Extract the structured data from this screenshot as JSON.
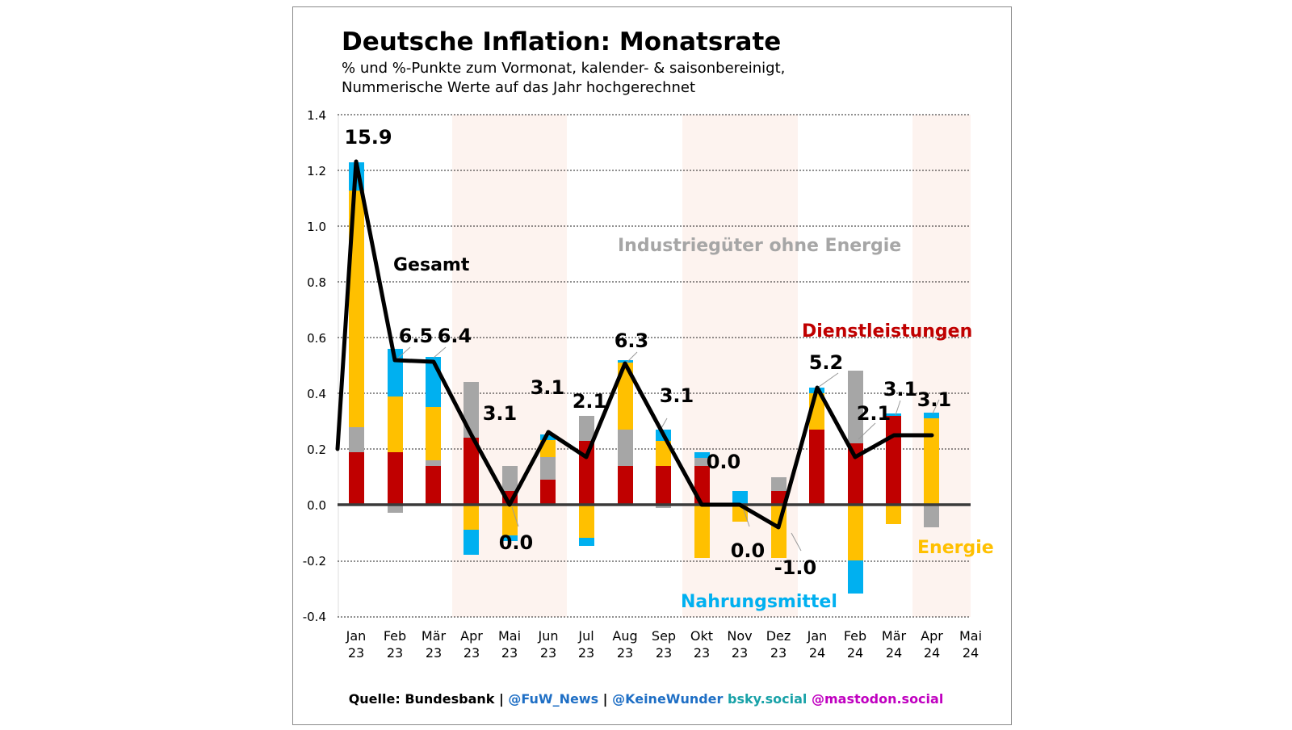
{
  "chart_data": {
    "type": "bar",
    "title": "Deutsche Inflation: Monatsrate",
    "subtitle_line1": "% und %-Punkte zum Vormonat, kalender- & saisonbereinigt,",
    "subtitle_line2": "Nummerische Werte auf das Jahr hochgerechnet",
    "ylim": [
      -0.4,
      1.4
    ],
    "yticks": [
      "1.4",
      "1.2",
      "1.0",
      "0.8",
      "0.6",
      "0.4",
      "0.2",
      "0.0",
      "-0.2",
      "-0.4"
    ],
    "categories": [
      {
        "month": "Jan",
        "year": "23"
      },
      {
        "month": "Feb",
        "year": "23"
      },
      {
        "month": "Mär",
        "year": "23"
      },
      {
        "month": "Apr",
        "year": "23"
      },
      {
        "month": "Mai",
        "year": "23"
      },
      {
        "month": "Jun",
        "year": "23"
      },
      {
        "month": "Jul",
        "year": "23"
      },
      {
        "month": "Aug",
        "year": "23"
      },
      {
        "month": "Sep",
        "year": "23"
      },
      {
        "month": "Okt",
        "year": "23"
      },
      {
        "month": "Nov",
        "year": "23"
      },
      {
        "month": "Dez",
        "year": "23"
      },
      {
        "month": "Jan",
        "year": "24"
      },
      {
        "month": "Feb",
        "year": "24"
      },
      {
        "month": "Mär",
        "year": "24"
      },
      {
        "month": "Apr",
        "year": "24"
      },
      {
        "month": "Mai",
        "year": "24"
      }
    ],
    "series": [
      {
        "name": "Dienstleistungen",
        "color": "#c00000",
        "values": [
          0.19,
          0.19,
          0.14,
          0.24,
          0.05,
          0.09,
          0.23,
          0.14,
          0.14,
          0.14,
          0.0,
          0.05,
          0.28,
          0.23,
          0.32,
          0.0,
          null
        ]
      },
      {
        "name": "Industriegüter ohne Energie",
        "color": "#a6a6a6",
        "values": [
          0.09,
          -0.03,
          0.02,
          0.2,
          0.09,
          0.08,
          0.09,
          0.13,
          -0.01,
          0.03,
          0.0,
          0.05,
          0.0,
          0.26,
          0.0,
          -0.08,
          null
        ]
      },
      {
        "name": "Energie",
        "color": "#ffc000",
        "values": [
          0.85,
          0.2,
          0.19,
          -0.09,
          -0.11,
          0.06,
          -0.12,
          0.24,
          0.09,
          -0.19,
          -0.06,
          -0.19,
          0.13,
          -0.2,
          -0.07,
          0.31,
          null
        ]
      },
      {
        "name": "Nahrungsmittel",
        "color": "#00b0f0",
        "values": [
          0.1,
          0.17,
          0.18,
          -0.09,
          -0.02,
          0.02,
          -0.03,
          0.01,
          0.04,
          0.02,
          0.05,
          0.0,
          0.02,
          -0.12,
          0.01,
          0.02,
          null
        ]
      }
    ],
    "total": {
      "name": "Gesamt",
      "values": [
        1.23,
        0.52,
        0.52,
        0.25,
        0.0,
        0.26,
        0.17,
        0.51,
        0.25,
        0.0,
        0.0,
        -0.08,
        0.42,
        0.17,
        0.25,
        0.25,
        null
      ]
    },
    "point_labels": [
      "15.9",
      "6.5",
      "6.4",
      "3.1",
      "0.0",
      "3.1",
      "2.1",
      "6.3",
      "3.1",
      "0.0",
      "0.0",
      "-1.0",
      "5.2",
      "2.1",
      "3.1",
      "3.1"
    ],
    "series_labels": {
      "gesamt": "Gesamt",
      "industrie": "Industriegüter ohne Energie",
      "dienst": "Dienstleistungen",
      "energie": "Energie",
      "nahrung": "Nahrungsmittel"
    },
    "shaded_quarters": [
      "Q2 23",
      "Q4 23",
      "Q2 24"
    ]
  },
  "footer": {
    "source": "Quelle: Bundesbank | ",
    "fuw": "@FuW_News",
    "sep": " | ",
    "kw": "@KeineWunder",
    "bsky": " bsky.social",
    "masto": " @mastodon.social",
    "colors": {
      "source": "#000000",
      "fuw": "#1f6fc5",
      "kw": "#1f6fc5",
      "bsky": "#19a2a8",
      "masto": "#c000c0"
    }
  }
}
